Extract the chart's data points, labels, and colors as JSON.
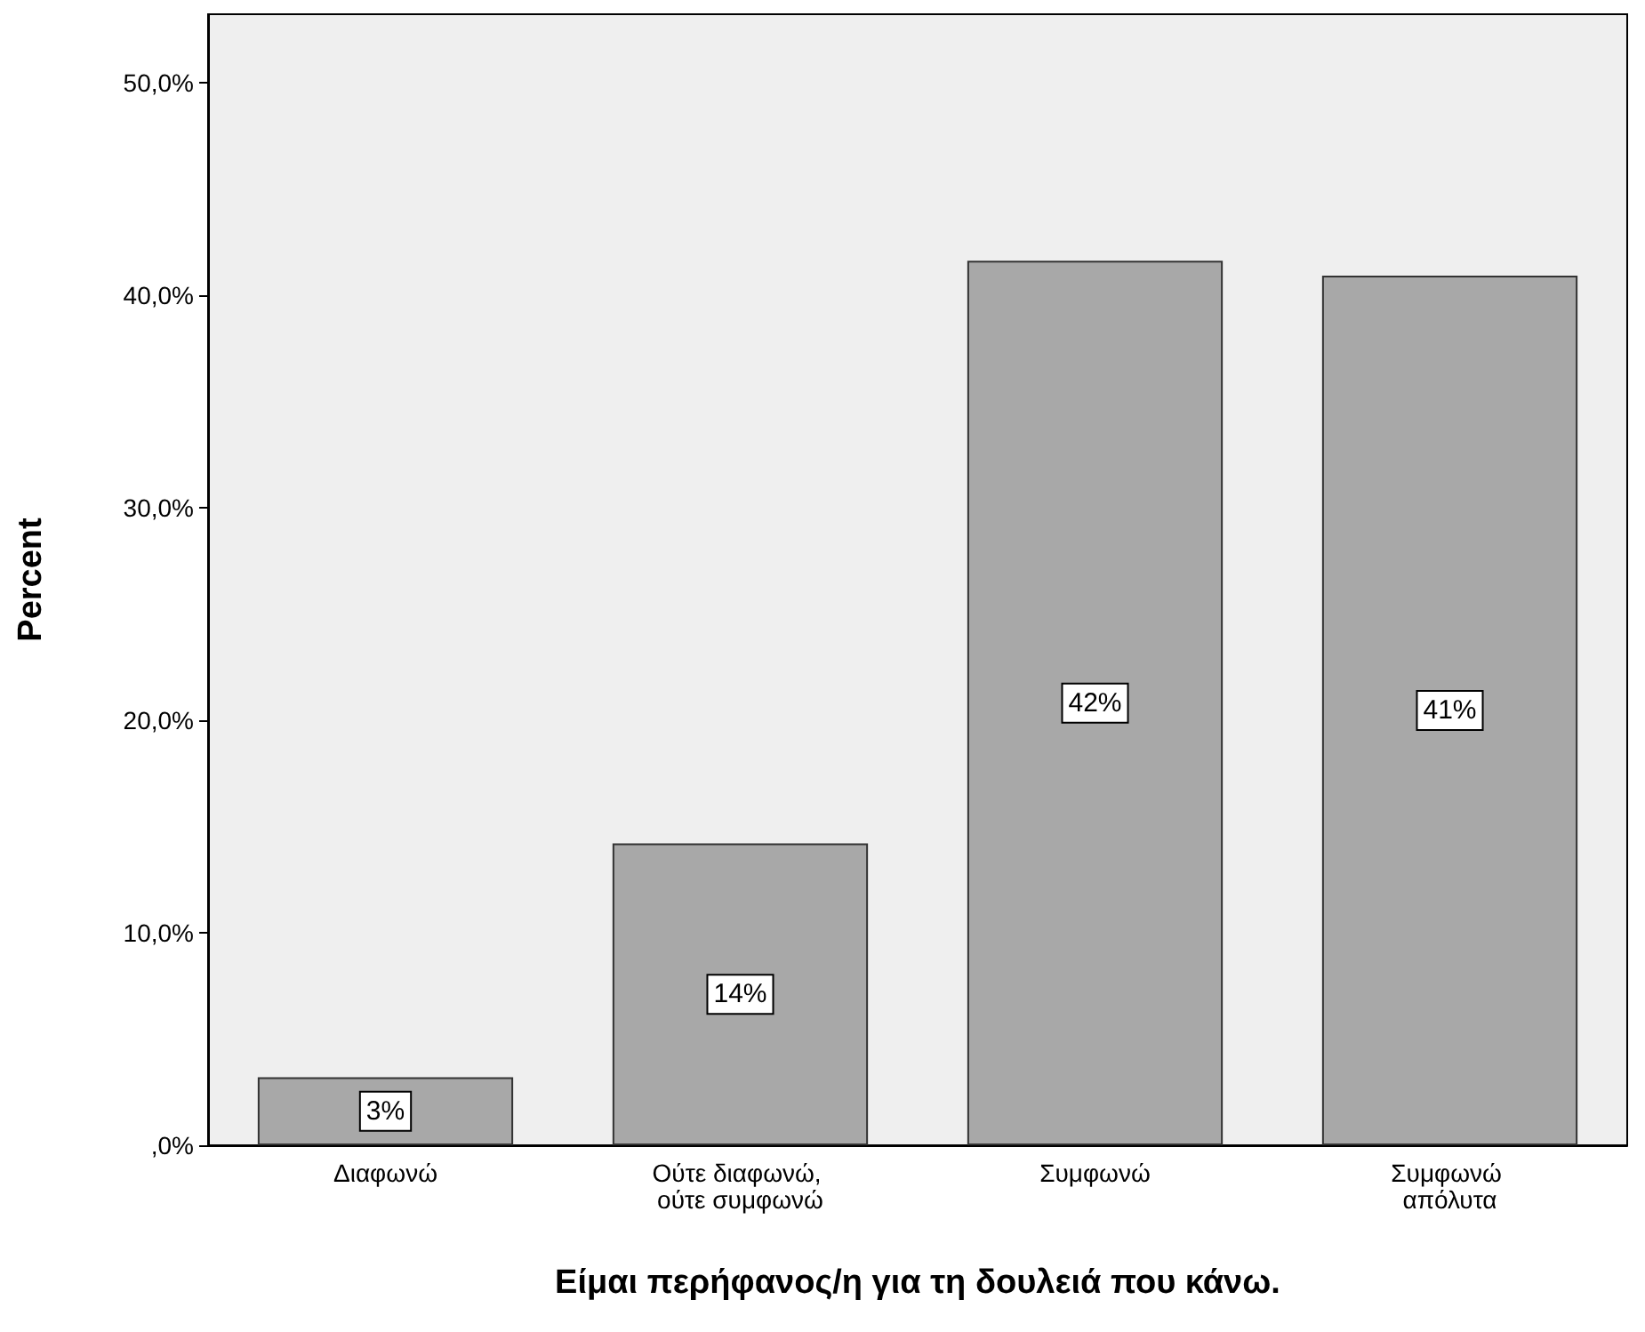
{
  "chart_data": {
    "type": "bar",
    "xlabel": "Είμαι περήφανος/η για τη δουλειά που κάνω.",
    "ylabel": "Percent",
    "categories": [
      "Διαφωνώ",
      "Ούτε διαφωνώ, ούτε συμφωνώ",
      "Συμφωνώ",
      "Συμφωνώ απόλυτα"
    ],
    "values": [
      3.2,
      14.2,
      41.6,
      40.9
    ],
    "color": "#a8a8a8",
    "value_labels": [
      "3%",
      "14%",
      "42%",
      "41%"
    ],
    "ylim": [
      0,
      53.2
    ],
    "yticks": [
      {
        "value": 0,
        "label": ",0%"
      },
      {
        "value": 10,
        "label": "10,0%"
      },
      {
        "value": 20,
        "label": "20,0%"
      },
      {
        "value": 30,
        "label": "30,0%"
      },
      {
        "value": 40,
        "label": "40,0%"
      },
      {
        "value": 50,
        "label": "50,0%"
      }
    ],
    "grid": false
  }
}
